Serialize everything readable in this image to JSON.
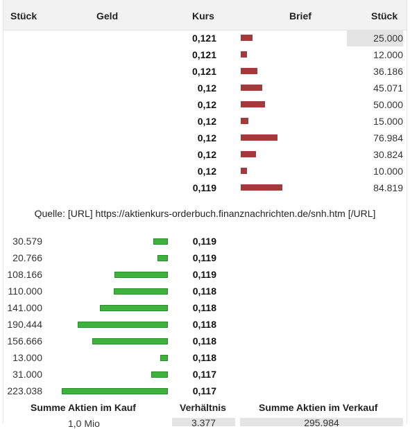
{
  "headers": {
    "col1": "Stück",
    "col2": "Geld",
    "col3": "Kurs",
    "col4": "Brief",
    "col5": "Stück"
  },
  "asks": [
    {
      "kurs": "0,121",
      "qty": "25.000",
      "bar": 0.28
    },
    {
      "kurs": "0,121",
      "qty": "12.000",
      "bar": 0.14
    },
    {
      "kurs": "0,121",
      "qty": "36.186",
      "bar": 0.4
    },
    {
      "kurs": "0,12",
      "qty": "45.071",
      "bar": 0.52
    },
    {
      "kurs": "0,12",
      "qty": "50.000",
      "bar": 0.58
    },
    {
      "kurs": "0,12",
      "qty": "15.000",
      "bar": 0.19
    },
    {
      "kurs": "0,12",
      "qty": "76.984",
      "bar": 0.89
    },
    {
      "kurs": "0,12",
      "qty": "30.824",
      "bar": 0.37
    },
    {
      "kurs": "0,12",
      "qty": "10.000",
      "bar": 0.14
    },
    {
      "kurs": "0,119",
      "qty": "84.819",
      "bar": 1.0
    }
  ],
  "source": "Quelle: [URL] https://aktienkurs-orderbuch.finanznachrichten.de/snh.htm [/URL]",
  "bids": [
    {
      "qty": "30.579",
      "kurs": "0,119",
      "bar": 0.14
    },
    {
      "qty": "20.766",
      "kurs": "0,119",
      "bar": 0.1
    },
    {
      "qty": "108.166",
      "kurs": "0,119",
      "bar": 0.5
    },
    {
      "qty": "110.000",
      "kurs": "0,118",
      "bar": 0.51
    },
    {
      "qty": "141.000",
      "kurs": "0,118",
      "bar": 0.64
    },
    {
      "qty": "190.444",
      "kurs": "0,118",
      "bar": 0.85
    },
    {
      "qty": "156.666",
      "kurs": "0,118",
      "bar": 0.71
    },
    {
      "qty": "13.000",
      "kurs": "0,118",
      "bar": 0.07
    },
    {
      "qty": "31.000",
      "kurs": "0,117",
      "bar": 0.16
    },
    {
      "qty": "223.038",
      "kurs": "0,117",
      "bar": 1.0
    }
  ],
  "summary": {
    "kauf_label": "Summe Aktien im Kauf",
    "ratio_label": "Verhältnis",
    "verkauf_label": "Summe Aktien im Verkauf",
    "kauf_value": "1,0 Mio",
    "ratio_value": "3,377",
    "verkauf_value": "295.984"
  },
  "colors": {
    "ask_bar": "#a33a3c",
    "bid_bar": "#3cb43c",
    "header_bg": "#f2f2f2"
  }
}
